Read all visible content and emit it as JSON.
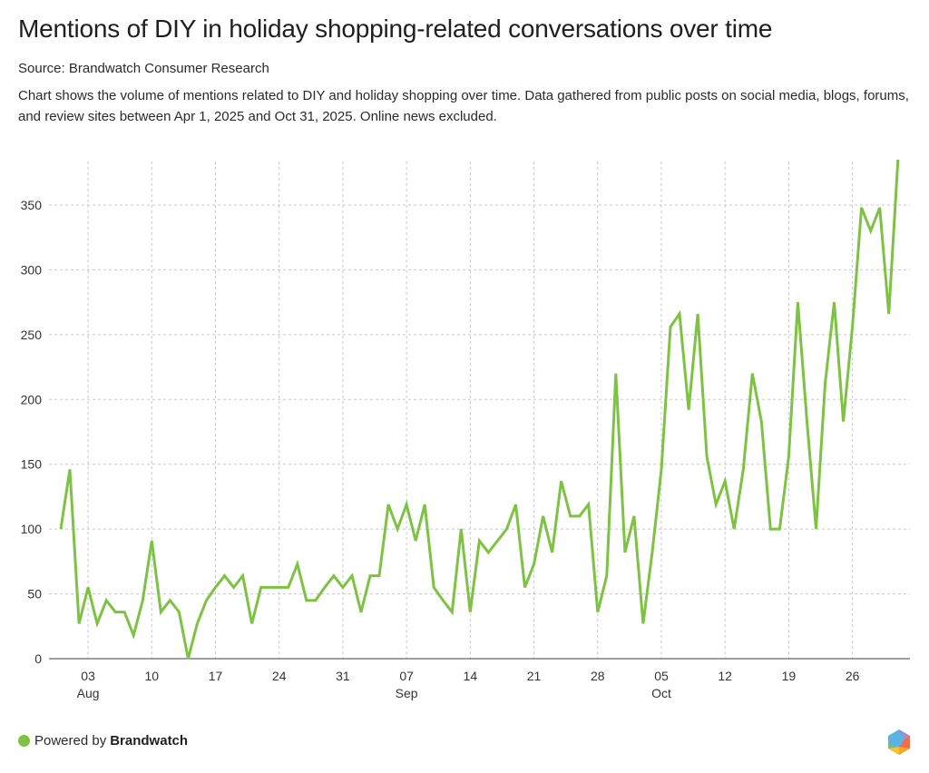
{
  "header": {
    "title": "Mentions of DIY in holiday shopping-related conversations over time",
    "source": "Source: Brandwatch Consumer Research",
    "description": "Chart shows the volume of mentions related to DIY and holiday shopping over time. Data gathered from public posts on social media, blogs, forums, and review sites between Apr 1, 2025 and Oct 31, 2025. Online news excluded."
  },
  "footer": {
    "powered_by": "Powered by",
    "brand": "Brandwatch",
    "dot_icon": "green-dot-icon",
    "logo_icon": "brandwatch-hexagon-logo-icon"
  },
  "colors": {
    "line": "#7dc242",
    "grid": "#c8c8c8",
    "axis": "#666666"
  },
  "chart_data": {
    "type": "line",
    "title": "Mentions of DIY in holiday shopping-related conversations over time",
    "xlabel": "",
    "ylabel": "",
    "ylim": [
      0,
      385
    ],
    "yticks": [
      0,
      50,
      100,
      150,
      200,
      250,
      300,
      350
    ],
    "grid": true,
    "x_start": "2025-07-31",
    "x_end": "2025-10-31",
    "xticks": [
      {
        "date": "2025-08-03",
        "day": "03",
        "month": "Aug"
      },
      {
        "date": "2025-08-10",
        "day": "10",
        "month": ""
      },
      {
        "date": "2025-08-17",
        "day": "17",
        "month": ""
      },
      {
        "date": "2025-08-24",
        "day": "24",
        "month": ""
      },
      {
        "date": "2025-08-31",
        "day": "31",
        "month": ""
      },
      {
        "date": "2025-09-07",
        "day": "07",
        "month": "Sep"
      },
      {
        "date": "2025-09-14",
        "day": "14",
        "month": ""
      },
      {
        "date": "2025-09-21",
        "day": "21",
        "month": ""
      },
      {
        "date": "2025-09-28",
        "day": "28",
        "month": ""
      },
      {
        "date": "2025-10-05",
        "day": "05",
        "month": "Oct"
      },
      {
        "date": "2025-10-12",
        "day": "12",
        "month": ""
      },
      {
        "date": "2025-10-19",
        "day": "19",
        "month": ""
      },
      {
        "date": "2025-10-26",
        "day": "26",
        "month": ""
      }
    ],
    "series": [
      {
        "name": "Mentions",
        "values": [
          100,
          146,
          27,
          55,
          27,
          45,
          36,
          36,
          18,
          45,
          91,
          36,
          45,
          36,
          0,
          27,
          45,
          55,
          64,
          55,
          64,
          27,
          55,
          55,
          55,
          55,
          73,
          45,
          45,
          55,
          64,
          55,
          64,
          36,
          64,
          64,
          119,
          100,
          119,
          91,
          119,
          55,
          45,
          36,
          100,
          36,
          91,
          82,
          91,
          100,
          119,
          55,
          73,
          110,
          82,
          137,
          110,
          110,
          119,
          36,
          64,
          220,
          82,
          110,
          27,
          82,
          146,
          256,
          266,
          192,
          266,
          156,
          119,
          137,
          100,
          146,
          220,
          183,
          100,
          100,
          156,
          275,
          183,
          100,
          212,
          275,
          183,
          256,
          348,
          330,
          348,
          266,
          385
        ]
      }
    ],
    "legend": "none"
  }
}
